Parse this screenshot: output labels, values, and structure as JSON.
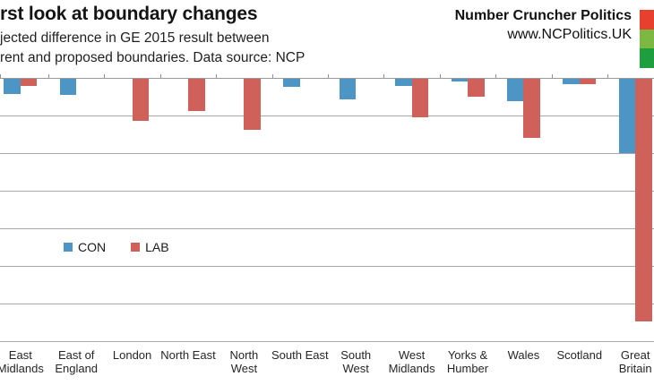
{
  "header": {
    "brand": {
      "name": "Number Cruncher Politics",
      "url": "www.NCPolitics.UK",
      "logo_colors": [
        "#e8402f",
        "#7db843",
        "#1f9e40"
      ]
    }
  },
  "chart_data": {
    "type": "bar",
    "title": "rst look at boundary changes",
    "subtitle_lines": [
      "jected difference in GE 2015 result between",
      "rent and proposed boundaries. Data source: NCP"
    ],
    "categories": [
      "East Midlands",
      "East of England",
      "London",
      "North East",
      "North West",
      "South East",
      "South West",
      "West Midlands",
      "Yorks & Humber",
      "Wales",
      "Scotland",
      "Great Britain"
    ],
    "category_label_lines": [
      [
        "East",
        "Midlands"
      ],
      [
        "East of",
        "England"
      ],
      [
        "London"
      ],
      [
        "North East"
      ],
      [
        "North",
        "West"
      ],
      [
        "South East"
      ],
      [
        "South",
        "West"
      ],
      [
        "West",
        "Midlands"
      ],
      [
        "Yorks &",
        "Humber"
      ],
      [
        "Wales"
      ],
      [
        "Scotland"
      ],
      [
        "Great",
        "Britain"
      ]
    ],
    "series": [
      {
        "name": "CON",
        "color": "#4d95c5",
        "values": [
          -2.0,
          -2.2,
          0,
          0,
          0,
          -1.1,
          -2.7,
          -1.0,
          -0.3,
          -3.0,
          -0.7,
          -9.9
        ]
      },
      {
        "name": "LAB",
        "color": "#d0605a",
        "values": [
          -0.9,
          0,
          -5.6,
          -4.3,
          -6.8,
          0,
          0,
          -5.1,
          -2.4,
          -7.9,
          -0.7,
          -32.3
        ]
      }
    ],
    "xlabel": "",
    "ylabel": "",
    "ylim": [
      -35,
      0
    ],
    "gridline_step": 5,
    "grid": true,
    "y_axis_tick_labels_visible": false,
    "legend_entries": [
      "CON",
      "LAB"
    ],
    "legend_position": "inside-plot-left"
  }
}
